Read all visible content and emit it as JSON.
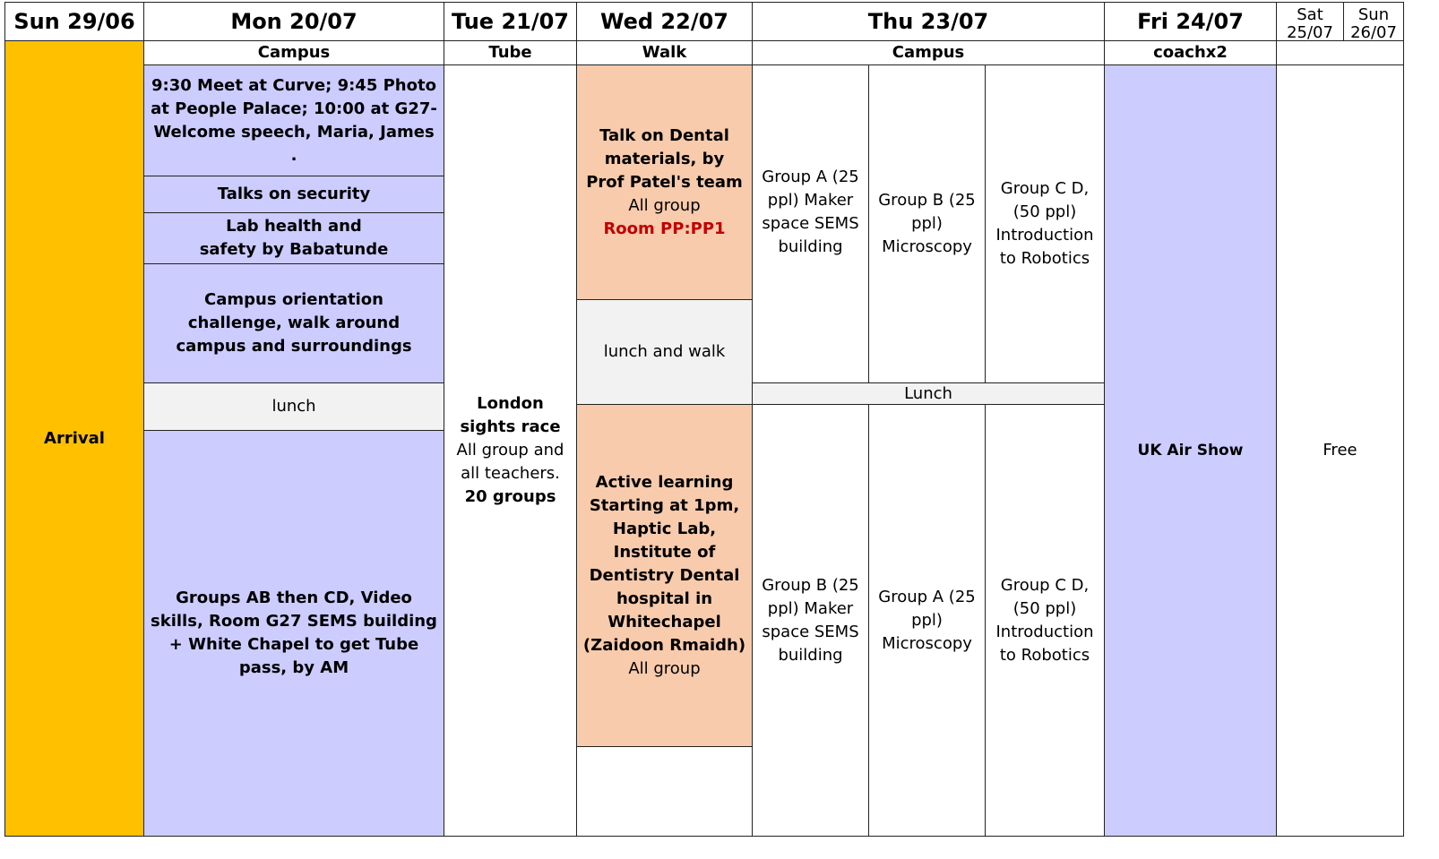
{
  "headers": {
    "sun": "Sun 29/06",
    "mon": "Mon 20/07",
    "tue": "Tue 21/07",
    "wed": "Wed 22/07",
    "thu": "Thu 23/07",
    "fri": "Fri 24/07",
    "sat": "Sat 25/07",
    "sun2": "Sun 26/07"
  },
  "subheaders": {
    "mon": "Campus",
    "tue": "Tube",
    "wed": "Walk",
    "thu": "Campus",
    "fri": "coachx2"
  },
  "sun": {
    "arrival": "Arrival"
  },
  "mon": {
    "welcome": "9:30 Meet at Curve; 9:45 Photo at People Palace; 10:00 at G27- Welcome speech, Maria, James .",
    "security": "Talks on security",
    "lab": "Lab health and safety by Babatunde",
    "orientation": "Campus orientation challenge, walk around campus and surroundings",
    "lunch": "lunch",
    "groups": "Groups AB then CD,  Video skills, Room  G27 SEMS building + White Chapel to get Tube pass, by AM"
  },
  "tue": {
    "title": "London sights race",
    "desc": "All group and all teachers.",
    "count": "20 groups"
  },
  "wed": {
    "talk_title": "Talk on Dental materials, by Prof Patel's team",
    "talk_group": "All group",
    "talk_room": "Room PP:PP1",
    "lunch": "lunch and walk",
    "active_title": "Active learning Starting at 1pm, Haptic Lab, Institute of Dentistry Dental hospital in Whitechapel (Zaidoon Rmaidh)",
    "active_group": "All group"
  },
  "thu": {
    "am": [
      "Group A (25 ppl) Maker space SEMS building",
      "Group B (25 ppl) Microscopy",
      "Group C D, (50 ppl) Introduction to Robotics"
    ],
    "lunch": "Lunch",
    "pm": [
      "Group B (25 ppl) Maker space SEMS building",
      "Group A (25 ppl) Microscopy",
      "Group C D, (50 ppl) Introduction to Robotics"
    ]
  },
  "fri": {
    "event": "UK Air Show"
  },
  "weekend": {
    "event": "Free"
  },
  "colors": {
    "arrival": "#FFC000",
    "campus": "#CCCCFF",
    "dental": "#F8CBAD",
    "lunch": "#F2F2F2",
    "room": "#C00000"
  }
}
